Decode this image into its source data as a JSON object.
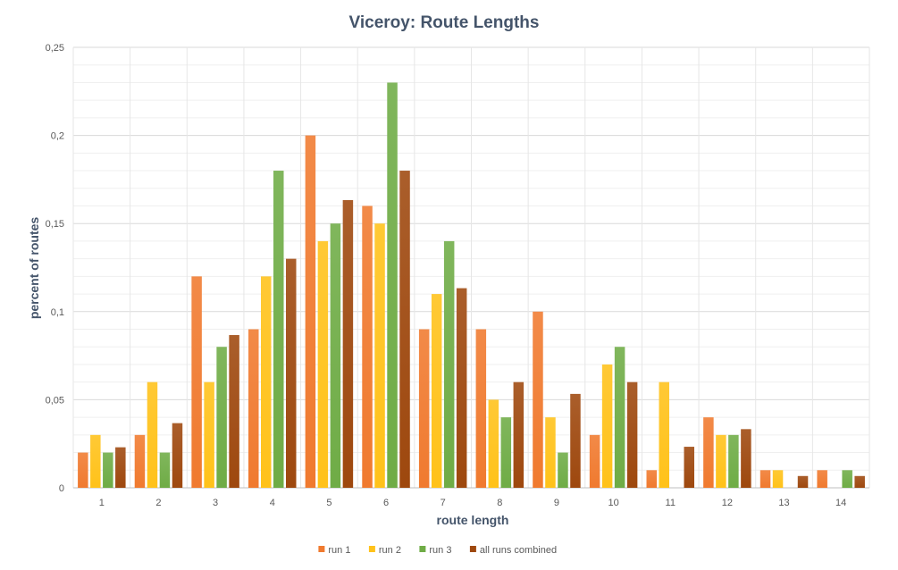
{
  "chart_data": {
    "type": "bar",
    "title": "Viceroy: Route Lengths",
    "xlabel": "route length",
    "ylabel": "percent of routes",
    "categories": [
      "1",
      "2",
      "3",
      "4",
      "5",
      "6",
      "7",
      "8",
      "9",
      "10",
      "11",
      "12",
      "13",
      "14"
    ],
    "ylim": [
      0,
      0.25
    ],
    "yticks": [
      0,
      0.05,
      0.1,
      0.15,
      0.2,
      0.25
    ],
    "ytick_labels": [
      "0",
      "0,05",
      "0,1",
      "0,15",
      "0,2",
      "0,25"
    ],
    "grid": true,
    "legend_position": "bottom",
    "series": [
      {
        "name": "run 1",
        "color": "#f07a2f",
        "values": [
          0.02,
          0.03,
          0.12,
          0.09,
          0.2,
          0.16,
          0.09,
          0.09,
          0.1,
          0.03,
          0.01,
          0.04,
          0.01,
          0.01
        ]
      },
      {
        "name": "run 2",
        "color": "#ffc21a",
        "values": [
          0.03,
          0.06,
          0.06,
          0.12,
          0.14,
          0.15,
          0.11,
          0.05,
          0.04,
          0.07,
          0.06,
          0.03,
          0.01,
          0.0
        ]
      },
      {
        "name": "run 3",
        "color": "#6fac46",
        "values": [
          0.02,
          0.02,
          0.08,
          0.18,
          0.15,
          0.23,
          0.14,
          0.04,
          0.02,
          0.08,
          0.0,
          0.03,
          0.0,
          0.01
        ]
      },
      {
        "name": "all runs combined",
        "color": "#9e480e",
        "values": [
          0.023,
          0.0367,
          0.0867,
          0.13,
          0.1633,
          0.18,
          0.1133,
          0.06,
          0.0533,
          0.06,
          0.0233,
          0.0333,
          0.0067,
          0.0067
        ]
      }
    ]
  }
}
